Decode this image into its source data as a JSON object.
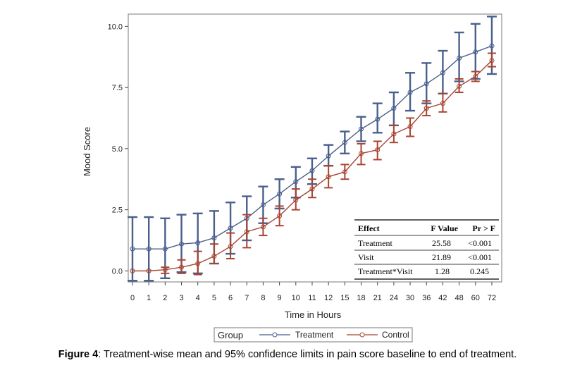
{
  "chart_data": {
    "type": "line",
    "ylabel": "Mood Score",
    "xlabel": "Time in Hours",
    "x_categories": [
      "0",
      "1",
      "2",
      "3",
      "4",
      "5",
      "6",
      "7",
      "8",
      "9",
      "10",
      "11",
      "12",
      "15",
      "18",
      "21",
      "24",
      "30",
      "36",
      "42",
      "48",
      "60",
      "72"
    ],
    "yticks": [
      "0.0",
      "2.5",
      "5.0",
      "7.5",
      "10.0"
    ],
    "ytick_values": [
      0,
      2.5,
      5,
      7.5,
      10
    ],
    "ylim": [
      -0.45,
      10.5
    ],
    "grid": false,
    "legend": {
      "title": "Group",
      "position": "bottom"
    },
    "series": [
      {
        "name": "Treatment",
        "color": "#4a5f8c",
        "mean": [
          0.9,
          0.9,
          0.9,
          1.1,
          1.15,
          1.35,
          1.75,
          2.15,
          2.7,
          3.15,
          3.65,
          4.1,
          4.7,
          5.25,
          5.8,
          6.2,
          6.65,
          7.3,
          7.65,
          8.1,
          8.7,
          8.95,
          9.2
        ],
        "lower": [
          -0.4,
          -0.4,
          -0.3,
          -0.05,
          -0.1,
          0.3,
          0.7,
          1.25,
          1.95,
          2.55,
          3.0,
          3.55,
          4.3,
          4.8,
          5.3,
          5.65,
          5.95,
          6.55,
          6.85,
          7.25,
          7.75,
          7.85,
          8.05
        ],
        "upper": [
          2.2,
          2.2,
          2.15,
          2.3,
          2.35,
          2.45,
          2.8,
          3.05,
          3.45,
          3.75,
          4.25,
          4.6,
          5.15,
          5.7,
          6.3,
          6.85,
          7.3,
          8.1,
          8.5,
          9.0,
          9.75,
          10.1,
          10.4
        ]
      },
      {
        "name": "Control",
        "color": "#a84432",
        "mean": [
          0.0,
          0.0,
          0.05,
          0.15,
          0.3,
          0.6,
          1.0,
          1.6,
          1.8,
          2.25,
          2.9,
          3.35,
          3.85,
          4.05,
          4.8,
          4.95,
          5.6,
          5.9,
          6.65,
          6.85,
          7.55,
          7.95,
          8.6
        ],
        "lower": [
          0.0,
          0.0,
          -0.1,
          -0.1,
          -0.15,
          0.3,
          0.5,
          0.95,
          1.45,
          1.85,
          2.5,
          3.0,
          3.4,
          3.75,
          4.35,
          4.55,
          5.25,
          5.5,
          6.35,
          6.5,
          7.3,
          7.75,
          8.35
        ],
        "upper": [
          0.0,
          0.0,
          0.15,
          0.45,
          0.8,
          1.1,
          1.55,
          2.3,
          2.15,
          2.65,
          3.35,
          3.75,
          4.3,
          4.35,
          5.2,
          5.3,
          5.95,
          6.25,
          6.95,
          7.25,
          7.85,
          8.15,
          8.9
        ]
      }
    ],
    "annotation_table": {
      "headers": [
        "Effect",
        "F Value",
        "Pr > F"
      ],
      "rows": [
        [
          "Treatment",
          "25.58",
          "<0.001"
        ],
        [
          "Visit",
          "21.89",
          "<0.001"
        ],
        [
          "Treatment*Visit",
          "1.28",
          "0.245"
        ]
      ]
    }
  },
  "caption": {
    "label": "Figure 4",
    "text": ": Treatment-wise mean and 95% confidence limits in pain score baseline to end of treatment."
  }
}
